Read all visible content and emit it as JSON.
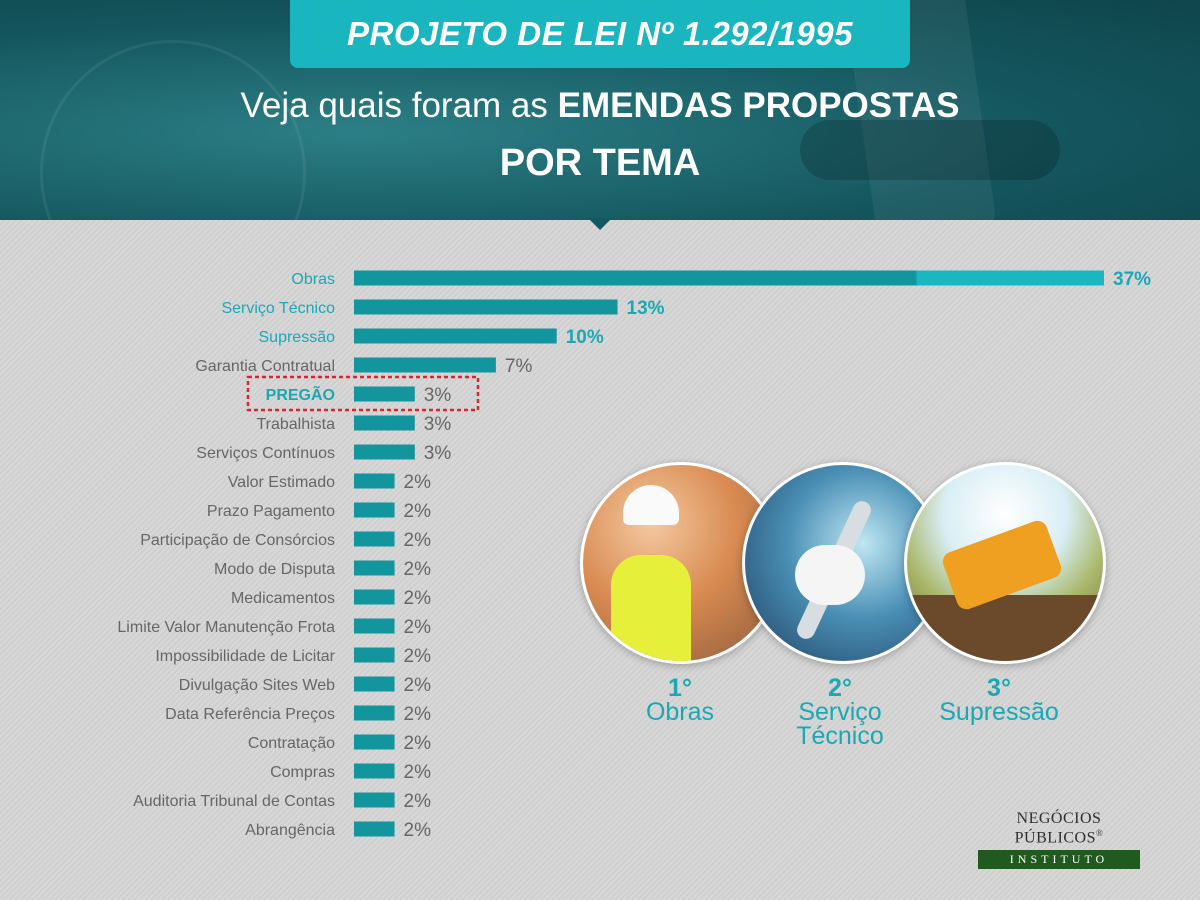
{
  "header": {
    "title": "PROJETO DE LEI Nº 1.292/1995",
    "subtitle_lead": "Veja quais foram as ",
    "subtitle_bold": "EMENDAS PROPOSTAS",
    "subtitle_line2": "POR TEMA"
  },
  "chart_data": {
    "type": "bar",
    "orientation": "horizontal",
    "categories": [
      "Obras",
      "Serviço Técnico",
      "Supressão",
      "Garantia Contratual",
      "PREGÃO",
      "Trabalhista",
      "Serviços Contínuos",
      "Valor Estimado",
      "Prazo Pagamento",
      "Participação de Consórcios",
      "Modo de Disputa",
      "Medicamentos",
      "Limite Valor Manutenção Frota",
      "Impossibilidade de Licitar",
      "Divulgação Sites Web",
      "Data Referência Preços",
      "Contratação",
      "Compras",
      "Auditoria Tribunal de Contas",
      "Abrangência"
    ],
    "values": [
      37,
      13,
      10,
      7,
      3,
      3,
      3,
      2,
      2,
      2,
      2,
      2,
      2,
      2,
      2,
      2,
      2,
      2,
      2,
      2
    ],
    "value_labels": [
      "37%",
      "13%",
      "10%",
      "7%",
      "3%",
      "3%",
      "3%",
      "2%",
      "2%",
      "2%",
      "2%",
      "2%",
      "2%",
      "2%",
      "2%",
      "2%",
      "2%",
      "2%",
      "2%",
      "2%"
    ],
    "highlighted_category": "PREGÃO",
    "top_categories": [
      "Obras",
      "Serviço Técnico",
      "Supressão"
    ],
    "bar_color": "#13959d",
    "top_bar_color": "#1ab7c1",
    "accent_color": "#1aa9b4",
    "highlight_border_color": "#d8252f",
    "label_color": "#666666",
    "xlim": [
      0,
      37
    ]
  },
  "podium": [
    {
      "position": "1°",
      "name": "Obras",
      "icon": "construction-worker-icon"
    },
    {
      "position": "2°",
      "name": "Serviço Técnico",
      "icon": "wrench-icon"
    },
    {
      "position": "3°",
      "name": "Supressão",
      "icon": "excavator-icon"
    }
  ],
  "logo": {
    "name": "NEGÓCIOS PÚBLICOS",
    "mark": "®",
    "sub": "INSTITUTO"
  }
}
